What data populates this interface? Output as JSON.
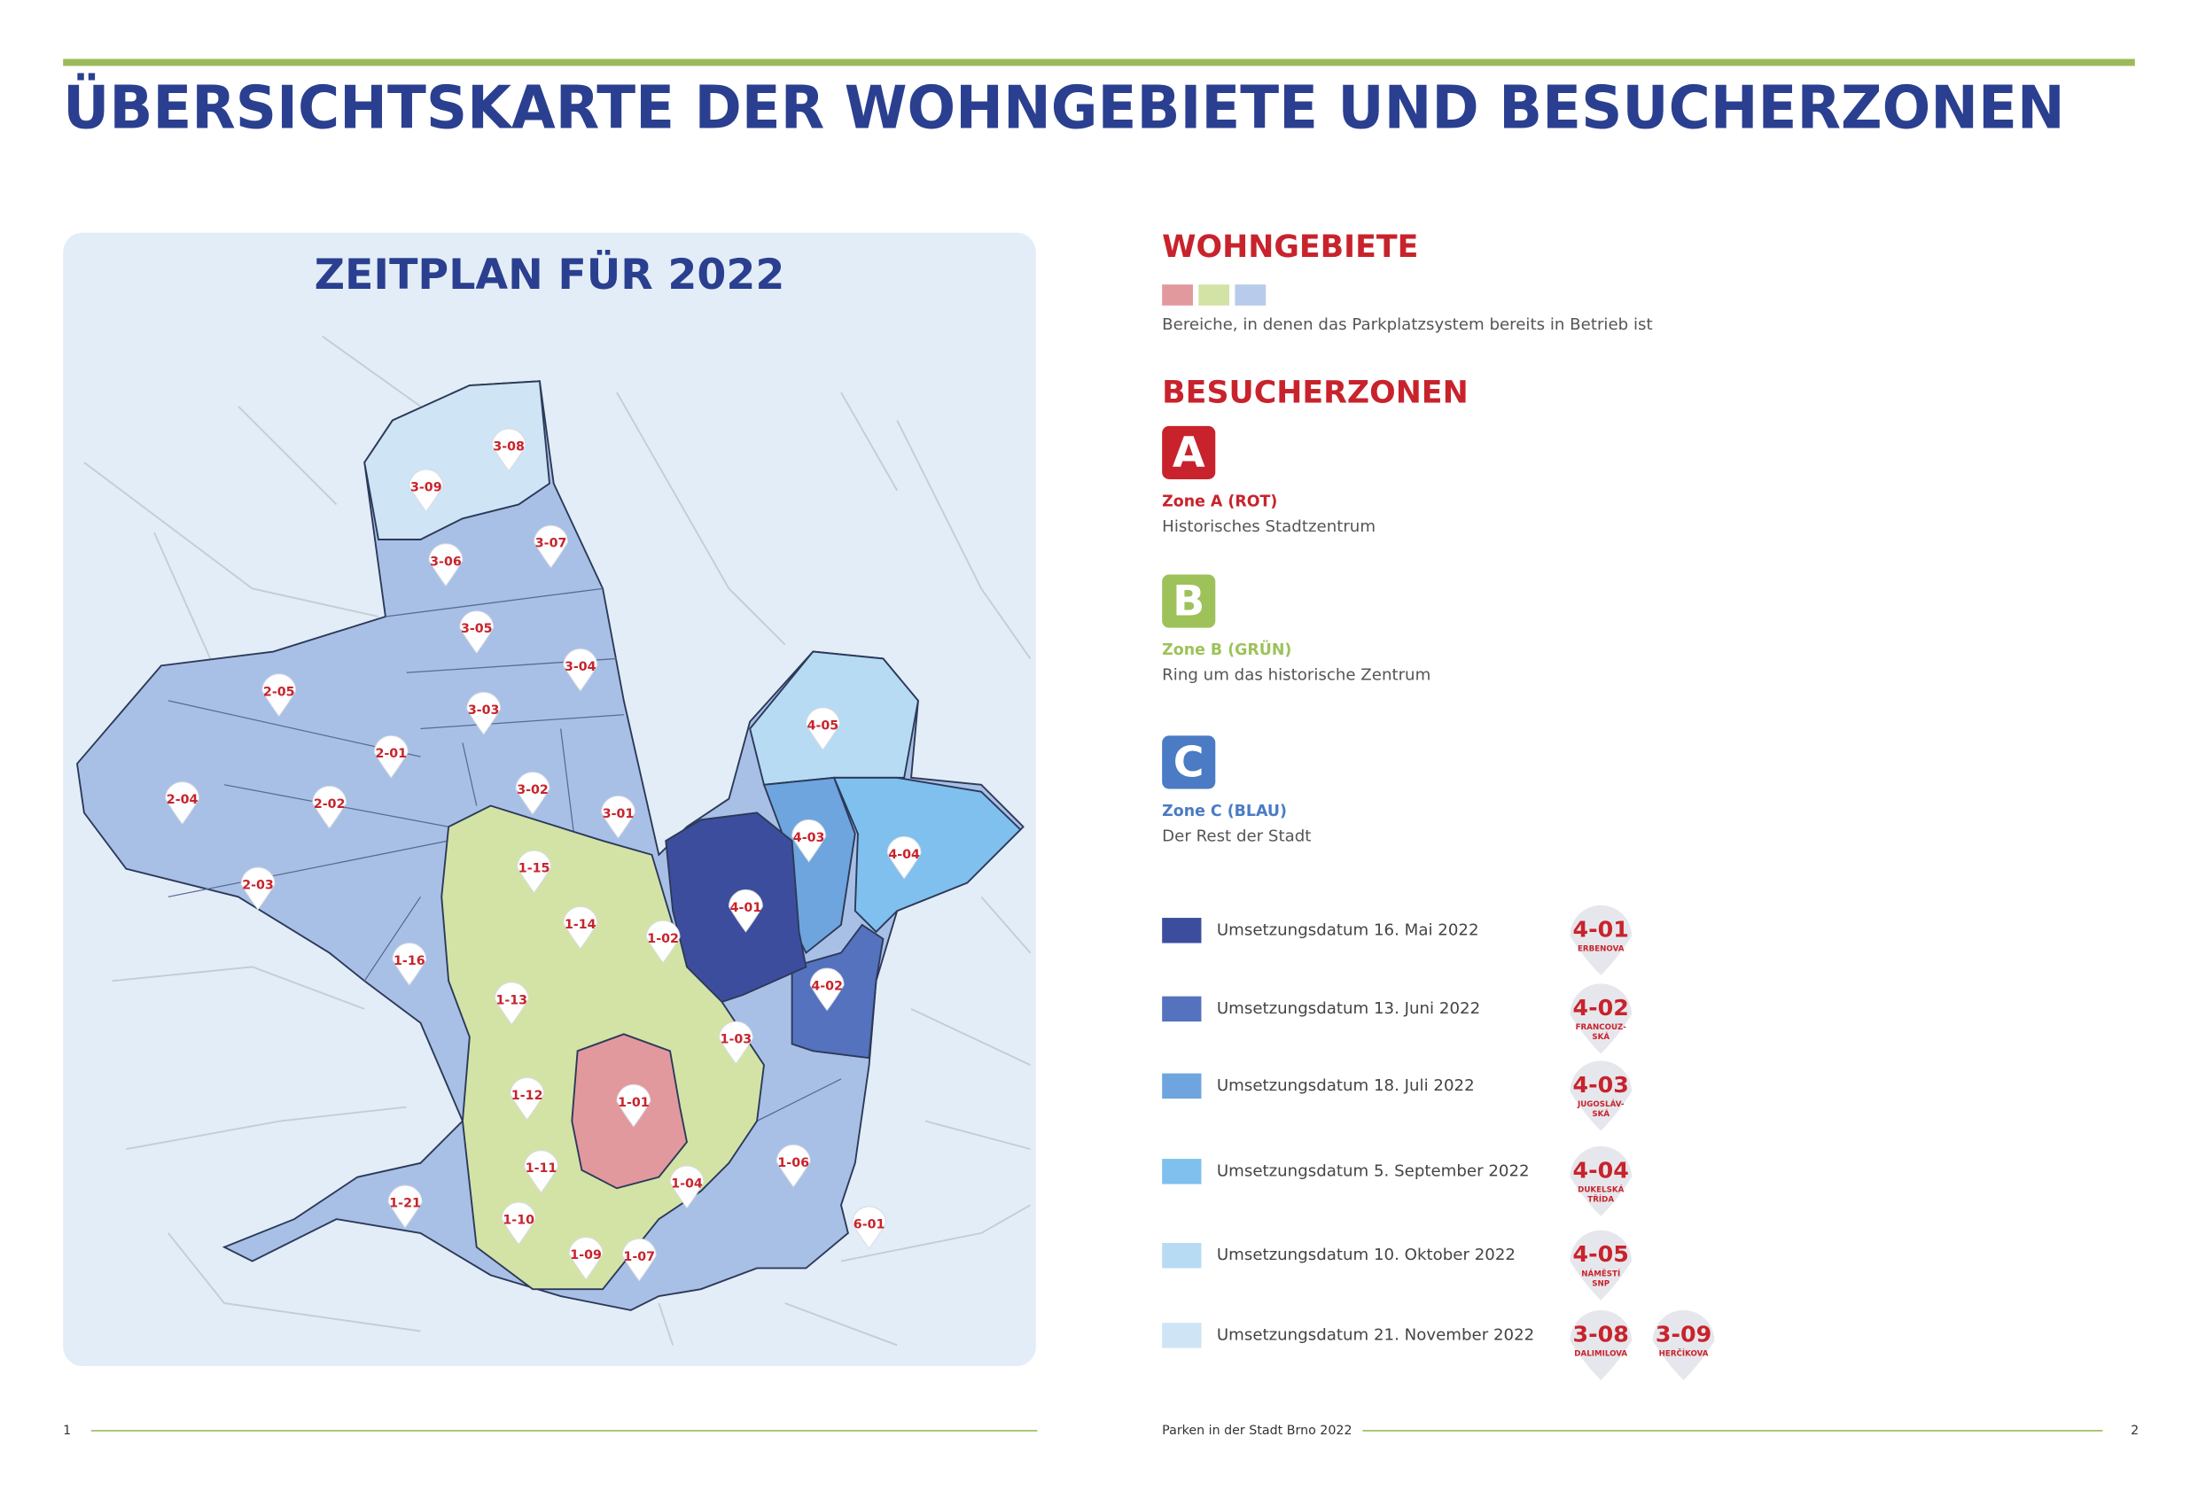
{
  "header": {
    "title": "ÜBERSICHTSKARTE DER WOHNGEBIETE UND BESUCHERZONEN"
  },
  "map": {
    "title": "ZEITPLAN FÜR 2022",
    "markers": [
      "3-08",
      "3-09",
      "3-07",
      "3-06",
      "3-05",
      "3-04",
      "2-05",
      "3-03",
      "2-01",
      "4-05",
      "3-02",
      "2-04",
      "2-02",
      "3-01",
      "4-03",
      "4-04",
      "1-15",
      "2-03",
      "4-01",
      "1-14",
      "1-02",
      "1-16",
      "4-02",
      "1-13",
      "1-03",
      "1-12",
      "1-01",
      "1-06",
      "1-11",
      "1-04",
      "1-21",
      "1-10",
      "6-01",
      "1-09",
      "1-07"
    ]
  },
  "residential": {
    "title": "WOHNGEBIETE",
    "colors": [
      "#e2999d",
      "#d3e3a6",
      "#b8cbea"
    ],
    "description": "Bereiche, in denen das Parkplatzsystem bereits in Betrieb ist"
  },
  "visitor": {
    "title": "BESUCHERZONEN",
    "zones": [
      {
        "letter": "A",
        "name": "Zone A (ROT)",
        "description": "Historisches Stadtzentrum",
        "color": "#c8232c"
      },
      {
        "letter": "B",
        "name": "Zone B (GRÜN)",
        "description": "Ring um das historische Zentrum",
        "color": "#9dc25a"
      },
      {
        "letter": "C",
        "name": "Zone C (BLAU)",
        "description": "Der Rest der Stadt",
        "color": "#4a7bc4"
      }
    ]
  },
  "schedule": [
    {
      "label": "Umsetzungsdatum 16. Mai 2022",
      "color": "#3d4d9e",
      "badges": [
        {
          "code": "4-01",
          "name": [
            "ERBENOVA"
          ]
        }
      ]
    },
    {
      "label": "Umsetzungsdatum 13. Juni 2022",
      "color": "#5572bf",
      "badges": [
        {
          "code": "4-02",
          "name": [
            "FRANCOUZ-",
            "SKÁ"
          ]
        }
      ]
    },
    {
      "label": "Umsetzungsdatum 18. Juli 2022",
      "color": "#6ea5de",
      "badges": [
        {
          "code": "4-03",
          "name": [
            "JUGOSLÁV-",
            "SKÁ"
          ]
        }
      ]
    },
    {
      "label": "Umsetzungsdatum 5. September 2022",
      "color": "#7fc0ee",
      "badges": [
        {
          "code": "4-04",
          "name": [
            "DUKELSKÁ",
            "TŘÍDA"
          ]
        }
      ]
    },
    {
      "label": "Umsetzungsdatum 10. Oktober 2022",
      "color": "#b7dbf3",
      "badges": [
        {
          "code": "4-05",
          "name": [
            "NÁMĚSTÍ",
            "SNP"
          ]
        }
      ]
    },
    {
      "label": "Umsetzungsdatum 21. November 2022",
      "color": "#cfe4f4",
      "badges": [
        {
          "code": "3-08",
          "name": [
            "DALIMILOVA"
          ]
        },
        {
          "code": "3-09",
          "name": [
            "HERČÍKOVA"
          ]
        }
      ]
    }
  ],
  "footer": {
    "page_left": "1",
    "center": "Parken in der Stadt Brno 2022",
    "page_right": "2"
  }
}
